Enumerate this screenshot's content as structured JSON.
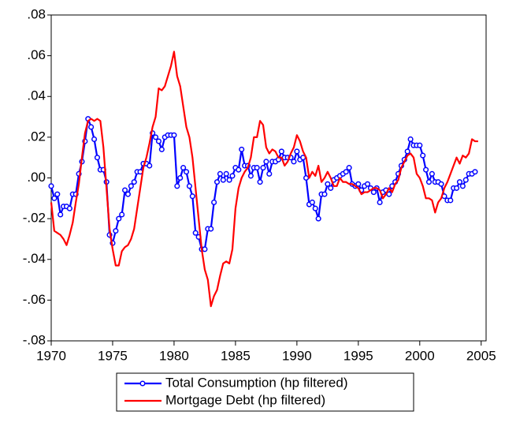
{
  "chart_data": {
    "type": "line",
    "xlim": [
      1970,
      2005.4
    ],
    "xticks": [
      1970,
      1975,
      1980,
      1985,
      1990,
      1995,
      2000,
      2005
    ],
    "ylim": [
      -0.08,
      0.08
    ],
    "yticks": [
      {
        "value": 0.08,
        "label": ".08"
      },
      {
        "value": 0.06,
        "label": ".06"
      },
      {
        "value": 0.04,
        "label": ".04"
      },
      {
        "value": 0.02,
        "label": ".02"
      },
      {
        "value": 0,
        "label": ".00"
      },
      {
        "value": -0.02,
        "label": "-.02"
      },
      {
        "value": -0.04,
        "label": "-.04"
      },
      {
        "value": -0.06,
        "label": "-.06"
      },
      {
        "value": -0.08,
        "label": "-.08"
      }
    ],
    "legend": "bottom",
    "series": [
      {
        "name": "Total Consumption (hp filtered)",
        "color": "#0000ff",
        "markers": true,
        "x": [
          1970,
          1970.25,
          1970.5,
          1970.75,
          1971,
          1971.25,
          1971.5,
          1971.75,
          1972,
          1972.25,
          1972.5,
          1972.75,
          1973,
          1973.25,
          1973.5,
          1973.75,
          1974,
          1974.25,
          1974.5,
          1974.75,
          1975,
          1975.25,
          1975.5,
          1975.75,
          1976,
          1976.25,
          1976.5,
          1976.75,
          1977,
          1977.25,
          1977.5,
          1977.75,
          1978,
          1978.25,
          1978.5,
          1978.75,
          1979,
          1979.25,
          1979.5,
          1979.75,
          1980,
          1980.25,
          1980.5,
          1980.75,
          1981,
          1981.25,
          1981.5,
          1981.75,
          1982,
          1982.25,
          1982.5,
          1982.75,
          1983,
          1983.25,
          1983.5,
          1983.75,
          1984,
          1984.25,
          1984.5,
          1984.75,
          1985,
          1985.25,
          1985.5,
          1985.75,
          1986,
          1986.25,
          1986.5,
          1986.75,
          1987,
          1987.25,
          1987.5,
          1987.75,
          1988,
          1988.25,
          1988.5,
          1988.75,
          1989,
          1989.25,
          1989.5,
          1989.75,
          1990,
          1990.25,
          1990.5,
          1990.75,
          1991,
          1991.25,
          1991.5,
          1991.75,
          1992,
          1992.25,
          1992.5,
          1992.75,
          1993,
          1993.25,
          1993.5,
          1993.75,
          1994,
          1994.25,
          1994.5,
          1994.75,
          1995,
          1995.25,
          1995.5,
          1995.75,
          1996,
          1996.25,
          1996.5,
          1996.75,
          1997,
          1997.25,
          1997.5,
          1997.75,
          1998,
          1998.25,
          1998.5,
          1998.75,
          1999,
          1999.25,
          1999.5,
          1999.75,
          2000,
          2000.25,
          2000.5,
          2000.75,
          2001,
          2001.25,
          2001.5,
          2001.75,
          2002,
          2002.25,
          2002.5,
          2002.75,
          2003,
          2003.25,
          2003.5,
          2003.75,
          2004,
          2004.25,
          2004.5
        ],
        "values": [
          -0.004,
          -0.01,
          -0.008,
          -0.018,
          -0.014,
          -0.014,
          -0.015,
          -0.008,
          -0.008,
          0.002,
          0.008,
          0.018,
          0.029,
          0.025,
          0.019,
          0.01,
          0.004,
          0.004,
          -0.002,
          -0.028,
          -0.032,
          -0.026,
          -0.02,
          -0.018,
          -0.006,
          -0.008,
          -0.004,
          -0.002,
          0.003,
          0.003,
          0.007,
          0.007,
          0.006,
          0.022,
          0.02,
          0.018,
          0.014,
          0.02,
          0.021,
          0.021,
          0.021,
          -0.004,
          0.0,
          0.005,
          0.003,
          -0.004,
          -0.009,
          -0.027,
          -0.029,
          -0.035,
          -0.035,
          -0.025,
          -0.025,
          -0.012,
          -0.002,
          0.002,
          -0.001,
          0.002,
          -0.001,
          0.001,
          0.005,
          0.004,
          0.014,
          0.006,
          0.006,
          0.001,
          0.005,
          0.005,
          -0.002,
          0.005,
          0.008,
          0.002,
          0.008,
          0.008,
          0.009,
          0.013,
          0.01,
          0.01,
          0.01,
          0.008,
          0.013,
          0.009,
          0.01,
          0.0,
          -0.013,
          -0.012,
          -0.015,
          -0.02,
          -0.008,
          -0.008,
          -0.003,
          -0.005,
          -0.001,
          0.0,
          0.001,
          0.002,
          0.003,
          0.005,
          -0.003,
          -0.004,
          -0.003,
          -0.006,
          -0.004,
          -0.003,
          -0.005,
          -0.007,
          -0.005,
          -0.012,
          -0.007,
          -0.006,
          -0.008,
          -0.004,
          -0.002,
          0.002,
          0.006,
          0.009,
          0.013,
          0.019,
          0.016,
          0.016,
          0.016,
          0.011,
          0.004,
          -0.002,
          0.002,
          -0.002,
          -0.002,
          -0.003,
          -0.009,
          -0.011,
          -0.011,
          -0.005,
          -0.005,
          -0.002,
          -0.004,
          -0.001,
          0.002,
          0.002,
          0.003
        ]
      },
      {
        "name": "Mortgage Debt (hp filtered)",
        "color": "#ff0000",
        "markers": false,
        "x": [
          1970,
          1970.25,
          1970.5,
          1970.75,
          1971,
          1971.25,
          1971.5,
          1971.75,
          1972,
          1972.25,
          1972.5,
          1972.75,
          1973,
          1973.25,
          1973.5,
          1973.75,
          1974,
          1974.25,
          1974.5,
          1974.75,
          1975,
          1975.25,
          1975.5,
          1975.75,
          1976,
          1976.25,
          1976.5,
          1976.75,
          1977,
          1977.25,
          1977.5,
          1977.75,
          1978,
          1978.25,
          1978.5,
          1978.75,
          1979,
          1979.25,
          1979.5,
          1979.75,
          1980,
          1980.25,
          1980.5,
          1980.75,
          1981,
          1981.25,
          1981.5,
          1981.75,
          1982,
          1982.25,
          1982.5,
          1982.75,
          1983,
          1983.25,
          1983.5,
          1983.75,
          1984,
          1984.25,
          1984.5,
          1984.75,
          1985,
          1985.25,
          1985.5,
          1985.75,
          1986,
          1986.25,
          1986.5,
          1986.75,
          1987,
          1987.25,
          1987.5,
          1987.75,
          1988,
          1988.25,
          1988.5,
          1988.75,
          1989,
          1989.25,
          1989.5,
          1989.75,
          1990,
          1990.25,
          1990.5,
          1990.75,
          1991,
          1991.25,
          1991.5,
          1991.75,
          1992,
          1992.25,
          1992.5,
          1992.75,
          1993,
          1993.25,
          1993.5,
          1993.75,
          1994,
          1994.25,
          1994.5,
          1994.75,
          1995,
          1995.25,
          1995.5,
          1995.75,
          1996,
          1996.25,
          1996.5,
          1996.75,
          1997,
          1997.25,
          1997.5,
          1997.75,
          1998,
          1998.25,
          1998.5,
          1998.75,
          1999,
          1999.25,
          1999.5,
          1999.75,
          2000,
          2000.25,
          2000.5,
          2000.75,
          2001,
          2001.25,
          2001.5,
          2001.75,
          2002,
          2002.25,
          2002.5,
          2002.75,
          2003,
          2003.25,
          2003.5,
          2003.75,
          2004,
          2004.25,
          2004.5,
          2004.75
        ],
        "values": [
          -0.012,
          -0.026,
          -0.027,
          -0.028,
          -0.03,
          -0.033,
          -0.028,
          -0.022,
          -0.012,
          -0.003,
          0.01,
          0.022,
          0.028,
          0.029,
          0.028,
          0.029,
          0.028,
          0.015,
          -0.005,
          -0.025,
          -0.035,
          -0.043,
          -0.043,
          -0.036,
          -0.034,
          -0.033,
          -0.03,
          -0.025,
          -0.015,
          -0.005,
          0.005,
          0.01,
          0.017,
          0.025,
          0.03,
          0.044,
          0.043,
          0.045,
          0.05,
          0.055,
          0.062,
          0.05,
          0.045,
          0.035,
          0.025,
          0.02,
          0.01,
          -0.005,
          -0.02,
          -0.035,
          -0.045,
          -0.05,
          -0.063,
          -0.058,
          -0.055,
          -0.048,
          -0.042,
          -0.041,
          -0.042,
          -0.035,
          -0.015,
          -0.005,
          0.0,
          0.003,
          0.005,
          0.01,
          0.02,
          0.02,
          0.028,
          0.026,
          0.015,
          0.012,
          0.014,
          0.013,
          0.01,
          0.01,
          0.006,
          0.008,
          0.012,
          0.015,
          0.021,
          0.018,
          0.013,
          0.01,
          0.0,
          0.003,
          0.001,
          0.006,
          -0.002,
          0.0,
          0.003,
          0.0,
          -0.004,
          -0.004,
          0.0,
          -0.002,
          -0.002,
          -0.003,
          -0.003,
          -0.004,
          -0.005,
          -0.008,
          -0.007,
          -0.007,
          -0.006,
          -0.005,
          -0.005,
          -0.006,
          -0.01,
          -0.008,
          -0.005,
          -0.007,
          -0.003,
          -0.001,
          0.005,
          0.008,
          0.011,
          0.012,
          0.01,
          0.002,
          0.0,
          -0.004,
          -0.01,
          -0.01,
          -0.011,
          -0.017,
          -0.012,
          -0.01,
          -0.005,
          -0.002,
          0.002,
          0.006,
          0.01,
          0.007,
          0.011,
          0.01,
          0.012,
          0.019,
          0.018,
          0.018
        ]
      }
    ]
  }
}
